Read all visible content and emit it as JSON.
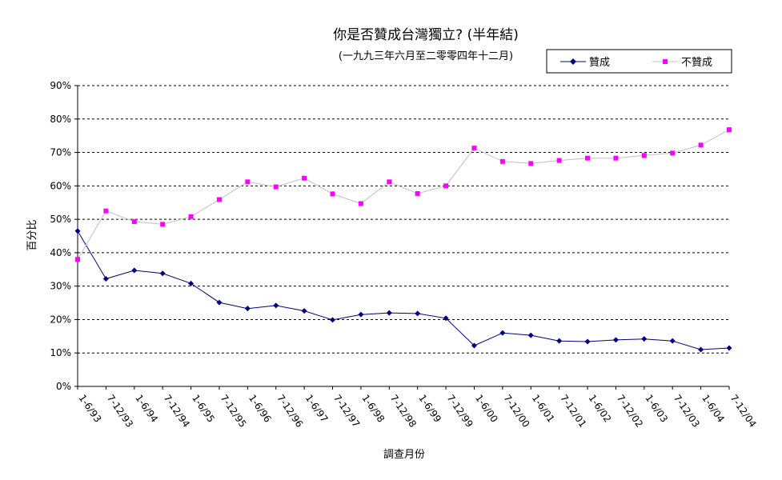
{
  "chart_data": {
    "type": "line",
    "title": "你是否贊成台灣獨立? (半年結)",
    "subtitle": "(一九九三年六月至二零零四年十二月)",
    "xlabel": "調查月份",
    "ylabel": "百分比",
    "ylim": [
      0,
      90
    ],
    "yticks": [
      "0%",
      "10%",
      "20%",
      "30%",
      "40%",
      "50%",
      "60%",
      "70%",
      "80%",
      "90%"
    ],
    "grid": "horizontal dashed",
    "legend_position": "top-right",
    "categories": [
      "1-6/93",
      "7-12/93",
      "1-6/94",
      "7-12/94",
      "1-6/95",
      "7-12/95",
      "1-6/96",
      "7-12/96",
      "1-6/97",
      "7-12/97",
      "1-6/98",
      "7-12/98",
      "1-6/99",
      "7-12/99",
      "1-6/00",
      "7-12/00",
      "1-6/01",
      "7-12/01",
      "1-6/02",
      "7-12/02",
      "1-6/03",
      "7-12/03",
      "1-6/04",
      "7-12/04"
    ],
    "series": [
      {
        "name": "贊成",
        "color": "#000080",
        "marker": "diamond",
        "values": [
          46.5,
          32.2,
          34.7,
          33.8,
          30.8,
          25.1,
          23.3,
          24.2,
          22.6,
          19.9,
          21.5,
          22.0,
          21.8,
          20.4,
          12.2,
          16.0,
          15.3,
          13.6,
          13.4,
          13.9,
          14.2,
          13.6,
          11.0,
          11.5
        ]
      },
      {
        "name": "不贊成",
        "color": "#ff00ff",
        "marker": "square",
        "values": [
          38.0,
          52.5,
          49.3,
          48.5,
          50.8,
          55.9,
          61.2,
          59.7,
          62.3,
          57.6,
          54.7,
          61.2,
          57.7,
          60.0,
          71.3,
          67.3,
          66.7,
          67.6,
          68.3,
          68.3,
          69.1,
          69.8,
          72.2,
          76.8
        ]
      }
    ]
  }
}
